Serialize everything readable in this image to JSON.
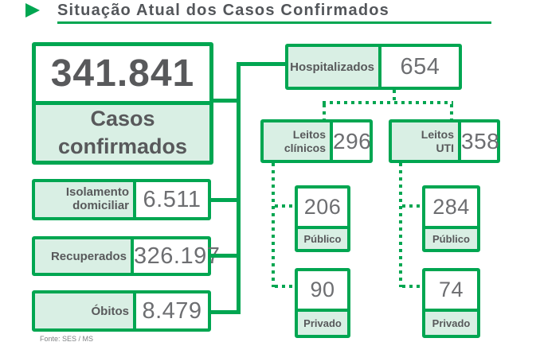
{
  "title": "Situação Atual dos Casos Confirmados",
  "source_note": "Fonte: SES / MS",
  "colors": {
    "green": "#00A651",
    "light_green": "#D9EFE4",
    "label_text": "#58595B",
    "value_text": "#6D6E71",
    "title_text": "#53565A"
  },
  "confirmed": {
    "value": "341.841",
    "label": "Casos\nconfirmados"
  },
  "stats": [
    {
      "label": "Isolamento\ndomiciliar",
      "value": "6.511"
    },
    {
      "label": "Recuperados",
      "value": "326.197"
    },
    {
      "label": "Óbitos",
      "value": "8.479"
    }
  ],
  "hospitalized": {
    "label": "Hospitalizados",
    "value": "654"
  },
  "beds": [
    {
      "label": "Leitos\nclínicos",
      "value": "296",
      "public": {
        "value": "206",
        "label": "Público"
      },
      "private": {
        "value": "90",
        "label": "Privado"
      }
    },
    {
      "label": "Leitos\nUTI",
      "value": "358",
      "public": {
        "value": "284",
        "label": "Público"
      },
      "private": {
        "value": "74",
        "label": "Privado"
      }
    }
  ]
}
